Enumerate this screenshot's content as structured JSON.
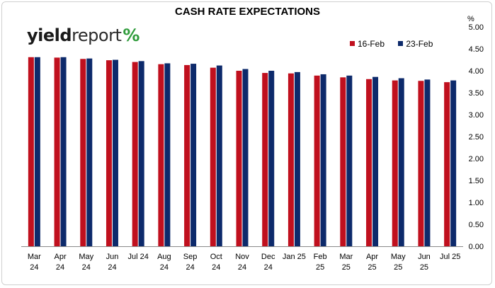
{
  "chart_data": {
    "type": "bar",
    "title": "CASH RATE EXPECTATIONS",
    "ylabel": "%",
    "ylim": [
      0,
      5
    ],
    "yticks": [
      "0.00",
      "0.50",
      "1.00",
      "1.50",
      "2.00",
      "2.50",
      "3.00",
      "3.50",
      "4.00",
      "4.50",
      "5.00"
    ],
    "categories": [
      [
        "Mar",
        "24"
      ],
      [
        "Apr",
        "24"
      ],
      [
        "May",
        "24"
      ],
      [
        "Jun",
        "24"
      ],
      [
        "Jul 24",
        ""
      ],
      [
        "Aug",
        "24"
      ],
      [
        "Sep",
        "24"
      ],
      [
        "Oct",
        "24"
      ],
      [
        "Nov",
        "24"
      ],
      [
        "Dec",
        "24"
      ],
      [
        "Jan 25",
        ""
      ],
      [
        "Feb",
        "25"
      ],
      [
        "Mar",
        "25"
      ],
      [
        "Apr",
        "25"
      ],
      [
        "May",
        "25"
      ],
      [
        "Jun",
        "25"
      ],
      [
        "Jul 25",
        ""
      ]
    ],
    "series": [
      {
        "name": "16-Feb",
        "color": "#c0101e",
        "values": [
          4.31,
          4.3,
          4.27,
          4.24,
          4.2,
          4.15,
          4.13,
          4.07,
          4.0,
          3.95,
          3.94,
          3.89,
          3.85,
          3.81,
          3.78,
          3.77,
          3.74
        ]
      },
      {
        "name": "23-Feb",
        "color": "#0d2a6b",
        "values": [
          4.31,
          4.31,
          4.28,
          4.25,
          4.22,
          4.17,
          4.16,
          4.12,
          4.04,
          4.0,
          3.97,
          3.92,
          3.89,
          3.86,
          3.83,
          3.8,
          3.78
        ]
      }
    ],
    "legend_position": "top-right",
    "axis_position": "right",
    "grid": false
  },
  "logo": {
    "part1": "yield",
    "part2": "report",
    "pct1": "%",
    "pct2": ""
  }
}
